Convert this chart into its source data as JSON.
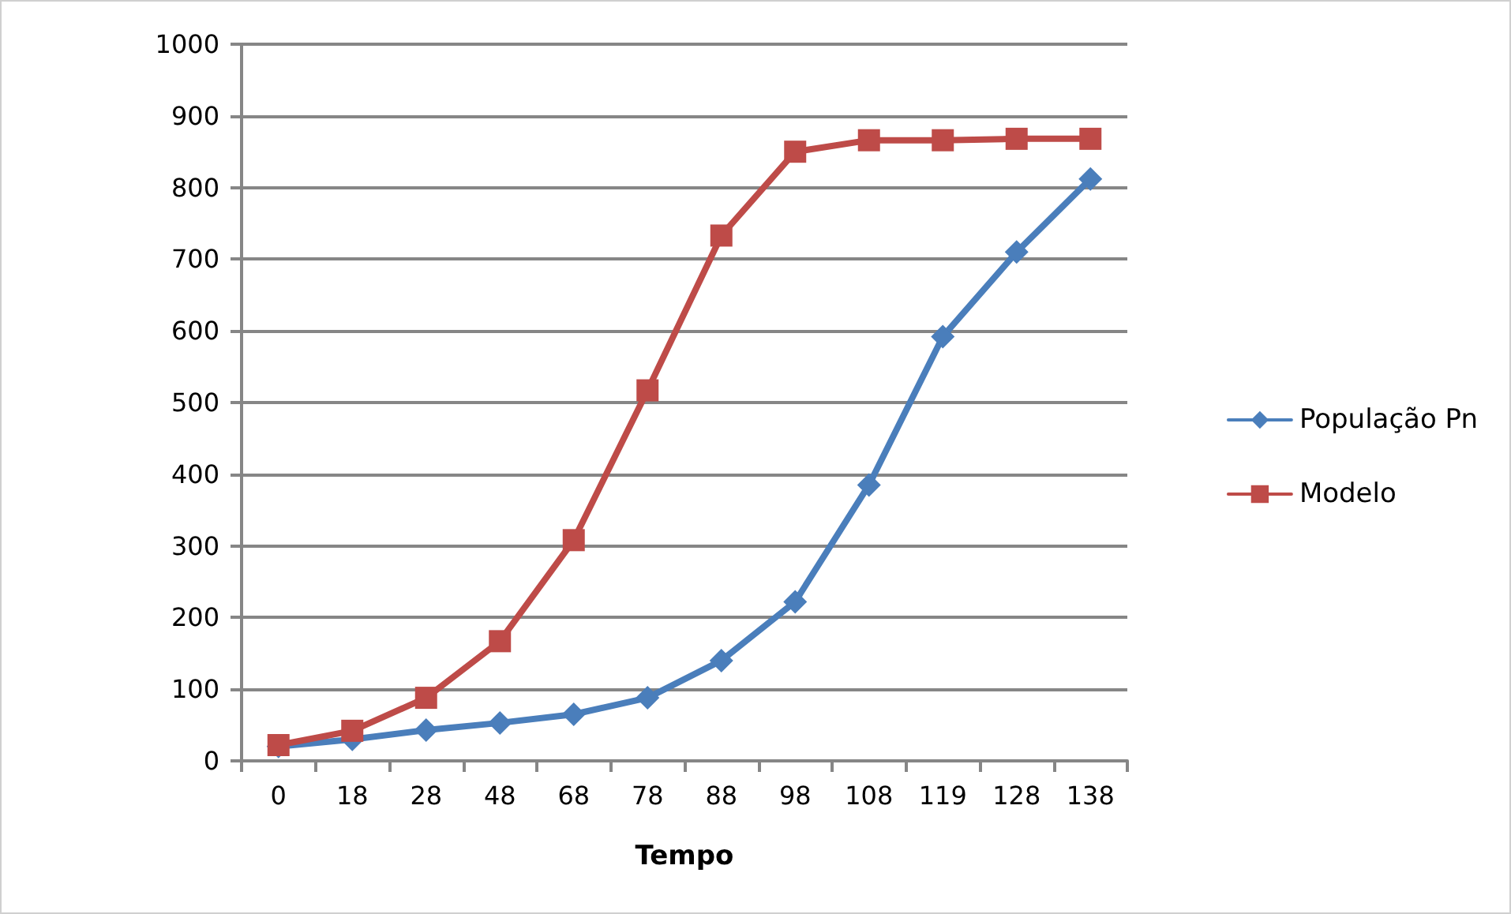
{
  "chart_data": {
    "type": "line",
    "xlabel": "Tempo",
    "categories": [
      "0",
      "18",
      "28",
      "48",
      "68",
      "78",
      "88",
      "98",
      "108",
      "119",
      "128",
      "138"
    ],
    "series": [
      {
        "name": "População Pn",
        "color": "#4a7ebb",
        "marker": "diamond",
        "values": [
          20,
          30,
          43,
          53,
          65,
          88,
          140,
          222,
          385,
          592,
          710,
          812
        ]
      },
      {
        "name": "Modelo",
        "color": "#be4b48",
        "marker": "square",
        "values": [
          22,
          42,
          88,
          167,
          308,
          517,
          733,
          850,
          866,
          866,
          868,
          868
        ]
      }
    ],
    "ylim": [
      0,
      1000
    ],
    "yticks": [
      0,
      100,
      200,
      300,
      400,
      500,
      600,
      700,
      800,
      900,
      1000
    ],
    "grid": "y",
    "legend": "right",
    "line_style": "solid"
  }
}
